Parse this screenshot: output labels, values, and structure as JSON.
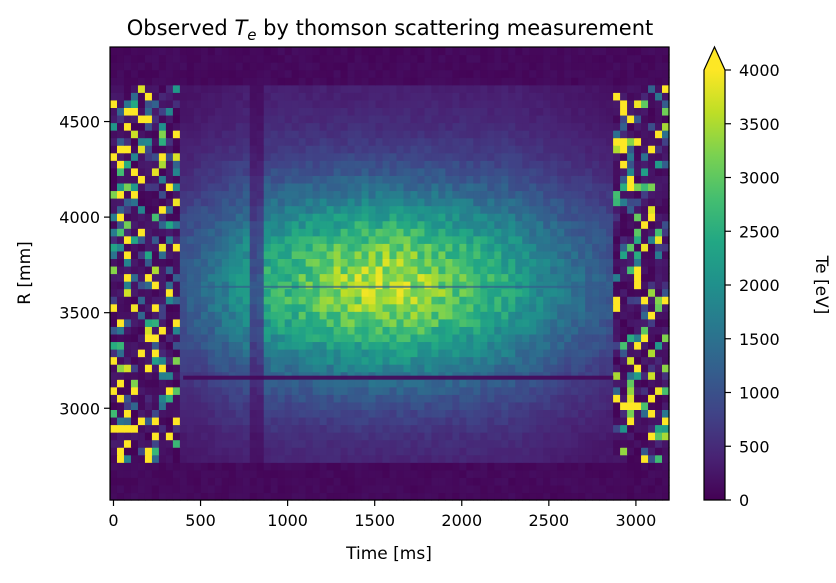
{
  "chart_data": {
    "type": "heatmap",
    "title_prefix": "Observed ",
    "title_symbol": "T",
    "title_subscript": "e",
    "title_suffix": " by thomson scattering measurement",
    "xlabel": "Time [ms]",
    "ylabel": "R [mm]",
    "xlim": [
      -20,
      3190
    ],
    "ylim": [
      2520,
      4890
    ],
    "xticks": [
      "0",
      "500",
      "1000",
      "1500",
      "2000",
      "2500",
      "3000"
    ],
    "xtick_values": [
      0,
      500,
      1000,
      1500,
      2000,
      2500,
      3000
    ],
    "yticks": [
      "3000",
      "3500",
      "4000",
      "4500"
    ],
    "ytick_values": [
      3000,
      3500,
      4000,
      4500
    ],
    "colorbar": {
      "label": "Te [eV]",
      "range": [
        0,
        4000
      ],
      "extend": "max",
      "ticks": [
        "0",
        "500",
        "1000",
        "1500",
        "2000",
        "2500",
        "3000",
        "3500",
        "4000"
      ],
      "tick_values": [
        0,
        500,
        1000,
        1500,
        2000,
        2500,
        3000,
        3500,
        4000
      ],
      "colormap": "viridis"
    },
    "features": {
      "plasma_time_window_ms": [
        400,
        2870
      ],
      "peak_region": {
        "time_ms": [
          1200,
          1900
        ],
        "R_mm": [
          3450,
          3850
        ],
        "Te_eV": 3500
      },
      "edge_boundary_R_mm": [
        2700,
        4690
      ],
      "noisy_time_windows_ms": [
        [
          -20,
          400
        ],
        [
          2870,
          3190
        ]
      ],
      "dip_time_ms": 830,
      "artifact_rows_R_mm": [
        3160,
        3630
      ]
    }
  }
}
